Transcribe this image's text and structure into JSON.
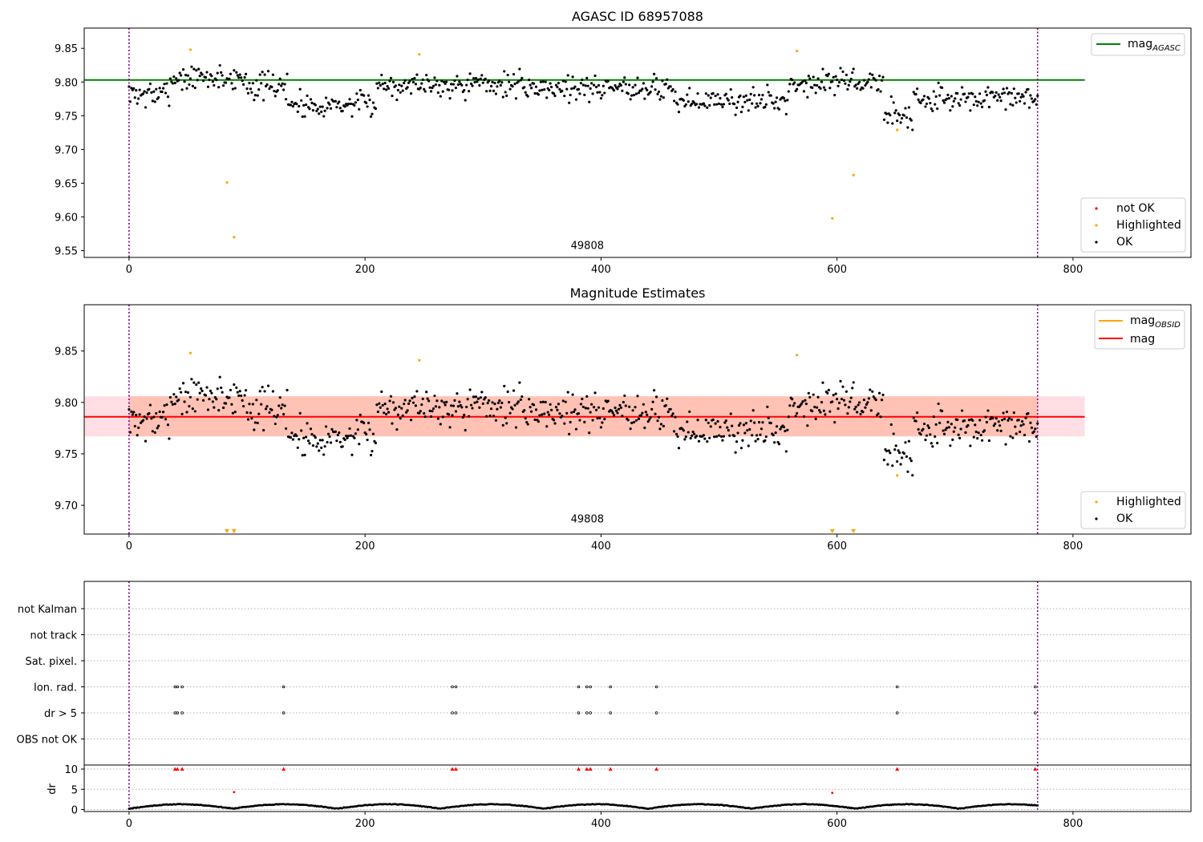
{
  "chart_data": [
    {
      "type": "scatter",
      "title": "AGASC ID 68957088",
      "xlim": [
        -38,
        900
      ],
      "ylim": [
        9.54,
        9.88
      ],
      "xticks": [
        0,
        200,
        400,
        600,
        800
      ],
      "yticks": [
        9.55,
        9.6,
        9.65,
        9.7,
        9.75,
        9.8,
        9.85
      ],
      "vlines": [
        0,
        770
      ],
      "text_annotations": [
        {
          "x": 385,
          "y": 9.548,
          "text": "49808"
        }
      ],
      "lines": [
        {
          "name": "mag_AGASC",
          "x": [
            -38,
            810
          ],
          "y": 9.803,
          "color": "#008000"
        }
      ],
      "highlighted": {
        "x": [
          52,
          83,
          89,
          246,
          566,
          596,
          614,
          651
        ],
        "y": [
          9.848,
          9.651,
          9.57,
          9.841,
          9.846,
          9.598,
          9.662,
          9.729
        ]
      },
      "ok_model": {
        "n": 771,
        "seed": 7
      },
      "legend_scatter": [
        "not OK",
        "Highlighted",
        "OK"
      ],
      "legend_lines": [
        "mag",
        "AGASC"
      ]
    },
    {
      "type": "scatter",
      "title": "Magnitude Estimates",
      "xlim": [
        -38,
        900
      ],
      "ylim": [
        9.672,
        9.895
      ],
      "xticks": [
        0,
        200,
        400,
        600,
        800
      ],
      "yticks": [
        9.7,
        9.75,
        9.8,
        9.85
      ],
      "vlines": [
        0,
        770
      ],
      "text_annotations": [
        {
          "x": 385,
          "y": 9.68,
          "text": "49808"
        }
      ],
      "lines": [
        {
          "name": "mag",
          "x": [
            -38,
            810
          ],
          "y": 9.786,
          "color": "#ff0000"
        }
      ],
      "bands": [
        {
          "x": [
            -38,
            810
          ],
          "y": [
            9.767,
            9.806
          ],
          "color": "#ffc0cb"
        },
        {
          "x": [
            0,
            770
          ],
          "y": [
            9.767,
            9.806
          ],
          "color": "#ffa07a"
        }
      ],
      "highlighted": {
        "x": [
          52,
          246,
          566,
          651
        ],
        "y": [
          9.848,
          9.841,
          9.846,
          9.729
        ]
      },
      "below_limit_markers": {
        "x": [
          83,
          89,
          596,
          614
        ]
      },
      "ok_model": {
        "n": 771,
        "seed": 7
      },
      "legend_scatter": [
        "Highlighted",
        "OK"
      ],
      "legend_lines": [
        "mag",
        "OBSID",
        "mag"
      ]
    },
    {
      "type": "scatter",
      "title": "",
      "xlim": [
        -38,
        900
      ],
      "xticks": [
        0,
        200,
        400,
        600,
        800
      ],
      "vlines": [
        0,
        770
      ],
      "categories": [
        "not Kalman",
        "not track",
        "Sat. pixel.",
        "Ion. rad.",
        "dr > 5",
        "OBS not OK"
      ],
      "flag_events": {
        "Ion. rad.": [
          39,
          41,
          45,
          131,
          274,
          277,
          381,
          388,
          391,
          408,
          447,
          651,
          768
        ],
        "dr > 5": [
          39,
          41,
          45,
          131,
          274,
          277,
          381,
          388,
          391,
          408,
          447,
          651,
          768
        ]
      },
      "dr": {
        "ylabel": "dr",
        "ylim": [
          -0.5,
          11
        ],
        "yticks": [
          0,
          5,
          10
        ],
        "clipped_at_10": [
          39,
          41,
          45,
          131,
          274,
          277,
          381,
          388,
          391,
          408,
          447,
          651,
          768
        ],
        "outliers": {
          "x": [
            89,
            596
          ],
          "y": [
            4.3,
            4.1
          ]
        },
        "ok_model": {
          "n": 771,
          "seed": 11
        }
      }
    }
  ]
}
